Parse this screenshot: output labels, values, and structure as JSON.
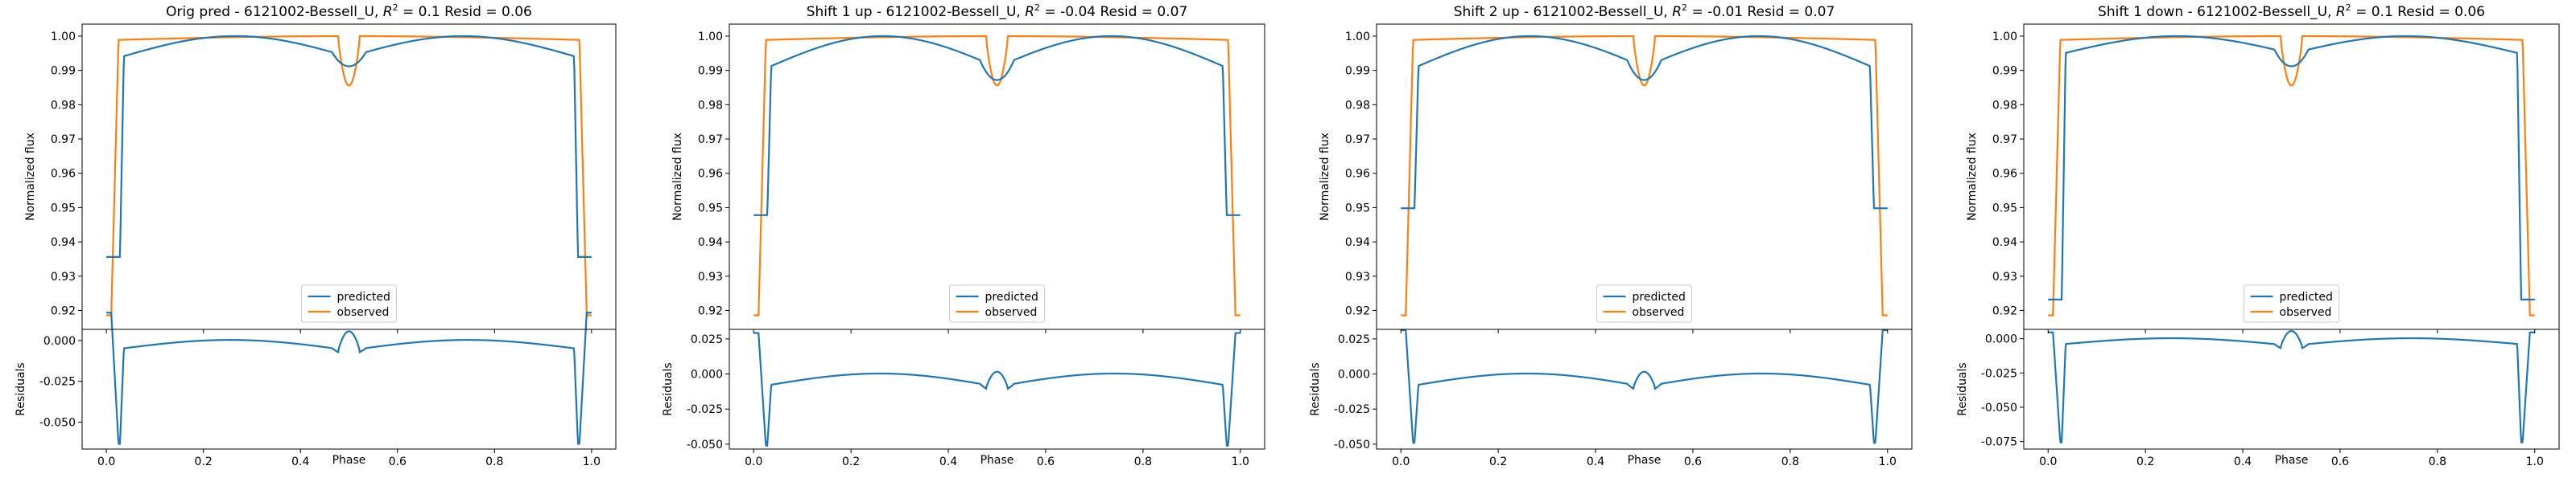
{
  "chart_data": [
    {
      "type": "line",
      "title_prefix": "Orig pred - 6121002-Bessell_U, ",
      "r2_symbol": "R",
      "r2_sup": "2",
      "title_suffix": " = 0.1 Resid = 0.06",
      "xlabel": "Phase",
      "ylabel": "Normalized flux",
      "ylabel_resid": "Residuals",
      "xlim": [
        -0.05,
        1.05
      ],
      "ylim": [
        0.9145,
        1.0035
      ],
      "ylim_resid": [
        -0.0665,
        0.0068
      ],
      "xticks": [
        "0.0",
        "0.2",
        "0.4",
        "0.6",
        "0.8",
        "1.0"
      ],
      "yticks": [
        "0.92",
        "0.93",
        "0.94",
        "0.95",
        "0.96",
        "0.97",
        "0.98",
        "0.99",
        "1.00"
      ],
      "yticks_resid": [
        "0.000",
        "-0.025",
        "-0.050"
      ],
      "pred_edge": 0.9356,
      "pred_ingress": 0.9939,
      "pred_dip": 0.9912,
      "obs_dip": 0.9856,
      "legend_position": "lower center",
      "series": [
        {
          "name": "predicted",
          "color": "#1f77b4"
        },
        {
          "name": "observed",
          "color": "#ff7f0e"
        }
      ]
    },
    {
      "type": "line",
      "title_prefix": "Shift 1 up - 6121002-Bessell_U, ",
      "r2_symbol": "R",
      "r2_sup": "2",
      "title_suffix": " = -0.04 Resid = 0.07",
      "xlabel": "Phase",
      "ylabel": "Normalized flux",
      "ylabel_resid": "Residuals",
      "xlim": [
        -0.05,
        1.05
      ],
      "ylim": [
        0.9145,
        1.0035
      ],
      "ylim_resid": [
        -0.0535,
        0.0318
      ],
      "xticks": [
        "0.0",
        "0.2",
        "0.4",
        "0.6",
        "0.8",
        "1.0"
      ],
      "yticks": [
        "0.92",
        "0.93",
        "0.94",
        "0.95",
        "0.96",
        "0.97",
        "0.98",
        "0.99",
        "1.00"
      ],
      "yticks_resid": [
        "0.025",
        "0.000",
        "-0.025",
        "-0.050"
      ],
      "pred_edge": 0.9478,
      "pred_ingress": 0.9909,
      "pred_dip": 0.9872,
      "obs_dip": 0.9856,
      "legend_position": "lower center",
      "series": [
        {
          "name": "predicted",
          "color": "#1f77b4"
        },
        {
          "name": "observed",
          "color": "#ff7f0e"
        }
      ]
    },
    {
      "type": "line",
      "title_prefix": "Shift 2 up - 6121002-Bessell_U, ",
      "r2_symbol": "R",
      "r2_sup": "2",
      "title_suffix": " = -0.01 Resid = 0.07",
      "xlabel": "Phase",
      "ylabel": "Normalized flux",
      "ylabel_resid": "Residuals",
      "xlim": [
        -0.05,
        1.05
      ],
      "ylim": [
        0.9145,
        1.0035
      ],
      "ylim_resid": [
        -0.0535,
        0.0318
      ],
      "xticks": [
        "0.0",
        "0.2",
        "0.4",
        "0.6",
        "0.8",
        "1.0"
      ],
      "yticks": [
        "0.92",
        "0.93",
        "0.94",
        "0.95",
        "0.96",
        "0.97",
        "0.98",
        "0.99",
        "1.00"
      ],
      "yticks_resid": [
        "0.025",
        "0.000",
        "-0.025",
        "-0.050"
      ],
      "pred_edge": 0.9498,
      "pred_ingress": 0.9909,
      "pred_dip": 0.9872,
      "obs_dip": 0.9856,
      "legend_position": "lower center",
      "series": [
        {
          "name": "predicted",
          "color": "#1f77b4"
        },
        {
          "name": "observed",
          "color": "#ff7f0e"
        }
      ]
    },
    {
      "type": "line",
      "title_prefix": "Shift 1 down - 6121002-Bessell_U, ",
      "r2_symbol": "R",
      "r2_sup": "2",
      "title_suffix": " = 0.1 Resid = 0.06",
      "xlabel": "Phase",
      "ylabel": "Normalized flux",
      "ylabel_resid": "Residuals",
      "xlim": [
        -0.05,
        1.05
      ],
      "ylim": [
        0.9145,
        1.0035
      ],
      "ylim_resid": [
        -0.0805,
        0.0068
      ],
      "xticks": [
        "0.0",
        "0.2",
        "0.4",
        "0.6",
        "0.8",
        "1.0"
      ],
      "yticks": [
        "0.92",
        "0.93",
        "0.94",
        "0.95",
        "0.96",
        "0.97",
        "0.98",
        "0.99",
        "1.00"
      ],
      "yticks_resid": [
        "0.000",
        "-0.025",
        "-0.050",
        "-0.075"
      ],
      "pred_edge": 0.9232,
      "pred_ingress": 0.9949,
      "pred_dip": 0.9912,
      "obs_dip": 0.9856,
      "legend_position": "lower center",
      "series": [
        {
          "name": "predicted",
          "color": "#1f77b4"
        },
        {
          "name": "observed",
          "color": "#ff7f0e"
        }
      ]
    }
  ]
}
